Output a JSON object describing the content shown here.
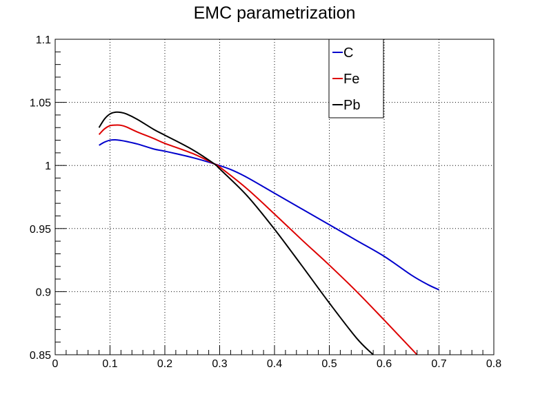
{
  "chart_data": {
    "type": "line",
    "title": "EMC parametrization",
    "xlabel": "",
    "ylabel": "",
    "xlim": [
      0,
      0.8
    ],
    "ylim": [
      0.85,
      1.1
    ],
    "x_ticks": [
      0,
      0.1,
      0.2,
      0.3,
      0.4,
      0.5,
      0.6,
      0.7,
      0.8
    ],
    "x_tick_labels": [
      "0",
      "0.1",
      "0.2",
      "0.3",
      "0.4",
      "0.5",
      "0.6",
      "0.7",
      "0.8"
    ],
    "y_ticks": [
      0.85,
      0.9,
      0.95,
      1.0,
      1.05,
      1.1
    ],
    "y_tick_labels": [
      "0.85",
      "0.9",
      "0.95",
      "1",
      "1.05",
      "1.1"
    ],
    "grid": true,
    "legend_position": "top-center",
    "series": [
      {
        "name": "C",
        "color": "#0000cc",
        "x": [
          0.08,
          0.09,
          0.1,
          0.11,
          0.12,
          0.13,
          0.15,
          0.18,
          0.2,
          0.25,
          0.29,
          0.32,
          0.35,
          0.4,
          0.45,
          0.5,
          0.55,
          0.6,
          0.65,
          0.68,
          0.7
        ],
        "y": [
          1.016,
          1.0185,
          1.02,
          1.0203,
          1.0198,
          1.019,
          1.017,
          1.013,
          1.0113,
          1.0063,
          1.0013,
          0.9968,
          0.9905,
          0.978,
          0.9655,
          0.953,
          0.9405,
          0.928,
          0.913,
          0.9055,
          0.9015
        ]
      },
      {
        "name": "Fe",
        "color": "#dd0000",
        "x": [
          0.08,
          0.09,
          0.1,
          0.11,
          0.12,
          0.13,
          0.15,
          0.18,
          0.2,
          0.25,
          0.29,
          0.3,
          0.35,
          0.4,
          0.45,
          0.5,
          0.55,
          0.6,
          0.66
        ],
        "y": [
          1.0245,
          1.029,
          1.0315,
          1.032,
          1.0318,
          1.0305,
          1.0265,
          1.0213,
          1.0175,
          1.0096,
          1.0013,
          0.9988,
          0.9815,
          0.9615,
          0.941,
          0.921,
          0.9,
          0.8775,
          0.85
        ]
      },
      {
        "name": "Pb",
        "color": "#000000",
        "x": [
          0.08,
          0.09,
          0.1,
          0.11,
          0.12,
          0.13,
          0.15,
          0.18,
          0.2,
          0.25,
          0.29,
          0.3,
          0.35,
          0.4,
          0.45,
          0.5,
          0.55,
          0.58
        ],
        "y": [
          1.03,
          1.0368,
          1.0408,
          1.0422,
          1.042,
          1.0408,
          1.0365,
          1.0285,
          1.024,
          1.0126,
          1.0013,
          0.9973,
          0.976,
          0.9495,
          0.9205,
          0.891,
          0.863,
          0.85
        ]
      }
    ]
  }
}
